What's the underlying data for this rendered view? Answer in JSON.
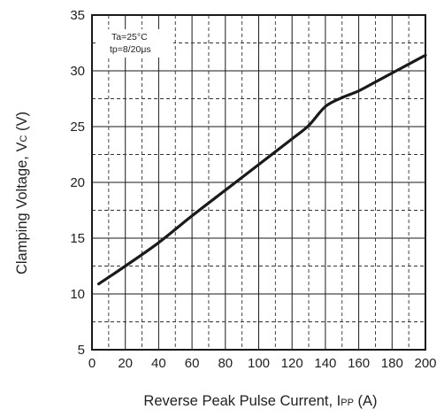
{
  "chart_data": {
    "type": "line",
    "xlabel": {
      "main": "Reverse Peak Pulse Current, I",
      "subscript": "PP",
      "unit": " (A)"
    },
    "ylabel": {
      "main": "Clamping Voltage, V",
      "subscript": "C",
      "unit": " (V)"
    },
    "xlim": [
      0,
      200
    ],
    "ylim": [
      5,
      35
    ],
    "x_ticks": [
      0,
      20,
      40,
      60,
      80,
      100,
      120,
      140,
      160,
      180,
      200
    ],
    "y_ticks": [
      5,
      10,
      15,
      20,
      25,
      30,
      35
    ],
    "major_grid": true,
    "minor_grid_dashed": true,
    "annotations": [
      "Ta=25°C",
      "tp=8/20μs"
    ],
    "series": [
      {
        "color": "#1a1a1a",
        "x": [
          4,
          20,
          40,
          60,
          80,
          100,
          120,
          130,
          140,
          150,
          160,
          170,
          180,
          190,
          200
        ],
        "y": [
          10.9,
          12.5,
          14.6,
          17.0,
          19.3,
          21.6,
          23.9,
          25.1,
          26.8,
          27.6,
          28.2,
          29.0,
          29.8,
          30.6,
          31.4
        ]
      }
    ]
  }
}
